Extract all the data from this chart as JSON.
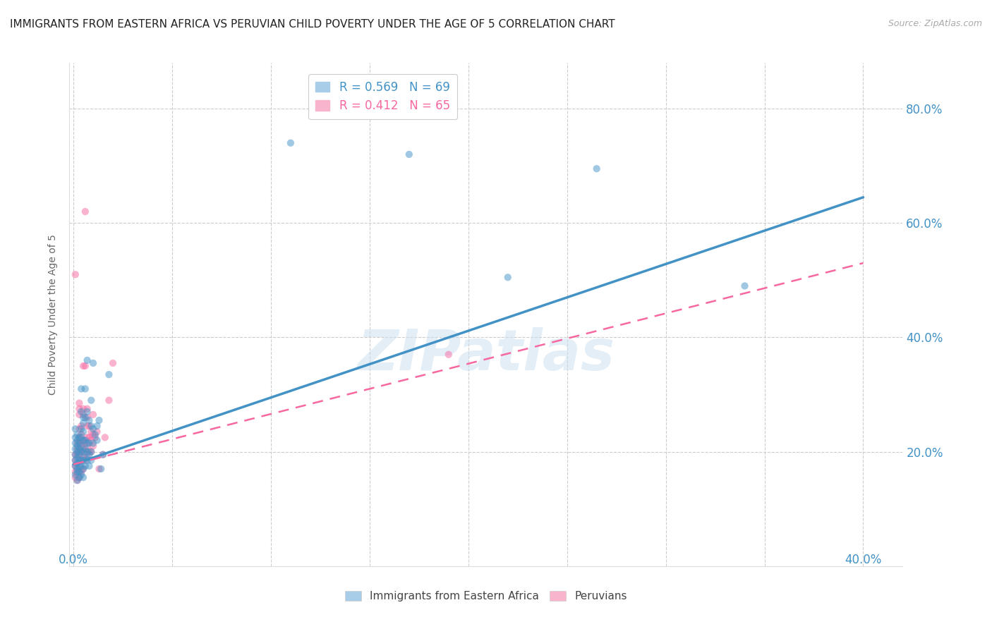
{
  "title": "IMMIGRANTS FROM EASTERN AFRICA VS PERUVIAN CHILD POVERTY UNDER THE AGE OF 5 CORRELATION CHART",
  "source": "Source: ZipAtlas.com",
  "ylabel": "Child Poverty Under the Age of 5",
  "y_ticks": [
    0.0,
    0.2,
    0.4,
    0.6,
    0.8
  ],
  "y_tick_labels": [
    "",
    "20.0%",
    "40.0%",
    "60.0%",
    "80.0%"
  ],
  "xlim": [
    -0.002,
    0.42
  ],
  "ylim": [
    0.05,
    0.88
  ],
  "blue_color": "#4292c6",
  "pink_color": "#f768a1",
  "watermark": "ZIPatlas",
  "blue_scatter": [
    [
      0.001,
      0.16
    ],
    [
      0.001,
      0.175
    ],
    [
      0.001,
      0.185
    ],
    [
      0.001,
      0.195
    ],
    [
      0.001,
      0.205
    ],
    [
      0.001,
      0.215
    ],
    [
      0.001,
      0.225
    ],
    [
      0.001,
      0.24
    ],
    [
      0.002,
      0.15
    ],
    [
      0.002,
      0.165
    ],
    [
      0.002,
      0.17
    ],
    [
      0.002,
      0.18
    ],
    [
      0.002,
      0.19
    ],
    [
      0.002,
      0.2
    ],
    [
      0.002,
      0.21
    ],
    [
      0.002,
      0.22
    ],
    [
      0.002,
      0.23
    ],
    [
      0.003,
      0.155
    ],
    [
      0.003,
      0.165
    ],
    [
      0.003,
      0.175
    ],
    [
      0.003,
      0.185
    ],
    [
      0.003,
      0.195
    ],
    [
      0.003,
      0.205
    ],
    [
      0.003,
      0.215
    ],
    [
      0.003,
      0.225
    ],
    [
      0.004,
      0.16
    ],
    [
      0.004,
      0.175
    ],
    [
      0.004,
      0.185
    ],
    [
      0.004,
      0.2
    ],
    [
      0.004,
      0.21
    ],
    [
      0.004,
      0.225
    ],
    [
      0.004,
      0.24
    ],
    [
      0.004,
      0.27
    ],
    [
      0.004,
      0.31
    ],
    [
      0.005,
      0.155
    ],
    [
      0.005,
      0.17
    ],
    [
      0.005,
      0.185
    ],
    [
      0.005,
      0.2
    ],
    [
      0.005,
      0.22
    ],
    [
      0.005,
      0.235
    ],
    [
      0.005,
      0.25
    ],
    [
      0.005,
      0.26
    ],
    [
      0.006,
      0.175
    ],
    [
      0.006,
      0.19
    ],
    [
      0.006,
      0.205
    ],
    [
      0.006,
      0.22
    ],
    [
      0.006,
      0.26
    ],
    [
      0.006,
      0.31
    ],
    [
      0.007,
      0.185
    ],
    [
      0.007,
      0.2
    ],
    [
      0.007,
      0.215
    ],
    [
      0.007,
      0.27
    ],
    [
      0.007,
      0.36
    ],
    [
      0.008,
      0.175
    ],
    [
      0.008,
      0.195
    ],
    [
      0.008,
      0.215
    ],
    [
      0.008,
      0.255
    ],
    [
      0.009,
      0.185
    ],
    [
      0.009,
      0.2
    ],
    [
      0.009,
      0.245
    ],
    [
      0.009,
      0.29
    ],
    [
      0.01,
      0.215
    ],
    [
      0.01,
      0.24
    ],
    [
      0.01,
      0.355
    ],
    [
      0.011,
      0.23
    ],
    [
      0.012,
      0.22
    ],
    [
      0.012,
      0.245
    ],
    [
      0.013,
      0.255
    ],
    [
      0.014,
      0.17
    ],
    [
      0.015,
      0.195
    ],
    [
      0.018,
      0.335
    ],
    [
      0.11,
      0.74
    ],
    [
      0.17,
      0.72
    ],
    [
      0.22,
      0.505
    ],
    [
      0.265,
      0.695
    ],
    [
      0.34,
      0.49
    ]
  ],
  "pink_scatter": [
    [
      0.001,
      0.155
    ],
    [
      0.001,
      0.165
    ],
    [
      0.001,
      0.175
    ],
    [
      0.001,
      0.185
    ],
    [
      0.001,
      0.195
    ],
    [
      0.001,
      0.51
    ],
    [
      0.002,
      0.15
    ],
    [
      0.002,
      0.16
    ],
    [
      0.002,
      0.17
    ],
    [
      0.002,
      0.18
    ],
    [
      0.002,
      0.195
    ],
    [
      0.002,
      0.205
    ],
    [
      0.002,
      0.215
    ],
    [
      0.003,
      0.155
    ],
    [
      0.003,
      0.165
    ],
    [
      0.003,
      0.18
    ],
    [
      0.003,
      0.195
    ],
    [
      0.003,
      0.205
    ],
    [
      0.003,
      0.215
    ],
    [
      0.003,
      0.225
    ],
    [
      0.003,
      0.24
    ],
    [
      0.003,
      0.265
    ],
    [
      0.003,
      0.275
    ],
    [
      0.003,
      0.285
    ],
    [
      0.004,
      0.165
    ],
    [
      0.004,
      0.185
    ],
    [
      0.004,
      0.2
    ],
    [
      0.004,
      0.215
    ],
    [
      0.004,
      0.23
    ],
    [
      0.004,
      0.245
    ],
    [
      0.005,
      0.17
    ],
    [
      0.005,
      0.19
    ],
    [
      0.005,
      0.205
    ],
    [
      0.005,
      0.22
    ],
    [
      0.005,
      0.265
    ],
    [
      0.005,
      0.275
    ],
    [
      0.005,
      0.35
    ],
    [
      0.006,
      0.185
    ],
    [
      0.006,
      0.2
    ],
    [
      0.006,
      0.215
    ],
    [
      0.006,
      0.35
    ],
    [
      0.006,
      0.62
    ],
    [
      0.007,
      0.19
    ],
    [
      0.007,
      0.21
    ],
    [
      0.007,
      0.225
    ],
    [
      0.007,
      0.245
    ],
    [
      0.007,
      0.26
    ],
    [
      0.007,
      0.275
    ],
    [
      0.008,
      0.2
    ],
    [
      0.008,
      0.225
    ],
    [
      0.008,
      0.245
    ],
    [
      0.009,
      0.2
    ],
    [
      0.009,
      0.22
    ],
    [
      0.009,
      0.235
    ],
    [
      0.01,
      0.21
    ],
    [
      0.01,
      0.23
    ],
    [
      0.01,
      0.265
    ],
    [
      0.011,
      0.225
    ],
    [
      0.012,
      0.235
    ],
    [
      0.013,
      0.17
    ],
    [
      0.015,
      0.195
    ],
    [
      0.016,
      0.225
    ],
    [
      0.018,
      0.29
    ],
    [
      0.02,
      0.355
    ],
    [
      0.19,
      0.37
    ]
  ],
  "blue_line_x": [
    0.0,
    0.4
  ],
  "blue_line_y": [
    0.178,
    0.645
  ],
  "pink_line_x": [
    0.0,
    0.4
  ],
  "pink_line_y": [
    0.178,
    0.53
  ],
  "axis_color": "#4292c6",
  "grid_color": "#cccccc",
  "title_fontsize": 11,
  "source_fontsize": 9
}
